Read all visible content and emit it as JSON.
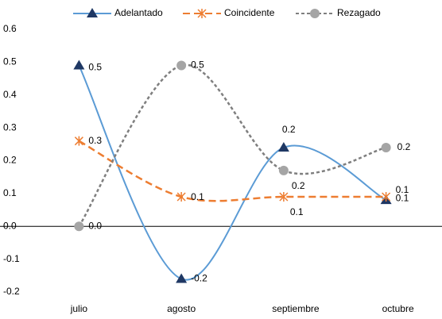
{
  "chart_data": {
    "type": "line",
    "categories": [
      "julio",
      "agosto",
      "septiembre",
      "octubre"
    ],
    "ylim": [
      -0.2,
      0.6
    ],
    "yticks": [
      -0.2,
      -0.1,
      {
        "value": 0,
        "label": "0.0"
      },
      0.1,
      0.2,
      0.3,
      0.4,
      0.5,
      0.6
    ],
    "smooth": true,
    "series": [
      {
        "name": "Adelantado",
        "color": "#5b9bd5",
        "marker_color": "#1f3864",
        "marker": "triangle",
        "dash": "solid",
        "values": [
          0.49,
          -0.16,
          0.24,
          0.08
        ],
        "value_labels": [
          "0.5",
          "-0.2",
          "0.2",
          "0.1"
        ]
      },
      {
        "name": "Coincidente",
        "color": "#ed7d31",
        "marker_color": "#ed7d31",
        "marker": "asterisk",
        "dash": "dashed",
        "values": [
          0.26,
          0.09,
          0.09,
          0.09
        ],
        "value_labels": [
          "0.3",
          "0.1",
          "0.1",
          "0.1"
        ]
      },
      {
        "name": "Rezagado",
        "color": "#7f7f7f",
        "marker_color": "#a5a5a5",
        "marker": "circle",
        "dash": "dotted",
        "values": [
          0,
          0.49,
          0.17,
          0.24
        ],
        "value_labels": [
          "0.0",
          "0.5",
          "0.2",
          "0.2"
        ]
      }
    ]
  }
}
